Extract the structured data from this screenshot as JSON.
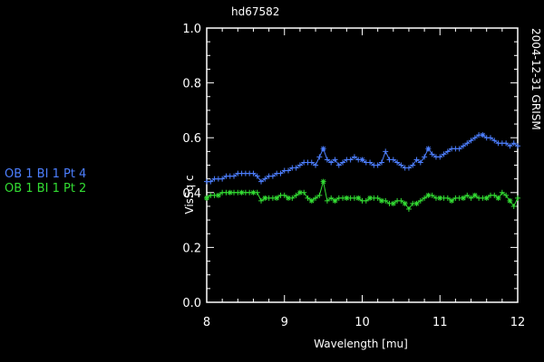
{
  "chart_data": {
    "type": "line",
    "title": "hd67582",
    "right_label": "2004-12-31 GRISM",
    "xlabel": "Wavelength [mu]",
    "ylabel": "VisSq c",
    "xlim": [
      8,
      12
    ],
    "ylim": [
      0,
      1
    ],
    "xticks": [
      8,
      9,
      10,
      11,
      12
    ],
    "yticks": [
      0.0,
      0.2,
      0.4,
      0.6,
      0.8,
      1.0
    ],
    "xtick_labels": [
      "8",
      "9",
      "10",
      "11",
      "12"
    ],
    "ytick_labels": [
      "0.0",
      "0.2",
      "0.4",
      "0.6",
      "0.8",
      "1.0"
    ],
    "colors": {
      "background": "#000000",
      "axes": "#ffffff",
      "text": "#ffffff"
    },
    "series": [
      {
        "name": "OB 1 BI 1 Pt 4",
        "color": "#4d7fff",
        "x": [
          8.0,
          8.05,
          8.1,
          8.15,
          8.2,
          8.25,
          8.3,
          8.35,
          8.4,
          8.45,
          8.5,
          8.55,
          8.6,
          8.65,
          8.7,
          8.75,
          8.8,
          8.85,
          8.9,
          8.95,
          9.0,
          9.05,
          9.1,
          9.15,
          9.2,
          9.25,
          9.3,
          9.35,
          9.4,
          9.45,
          9.5,
          9.55,
          9.6,
          9.65,
          9.7,
          9.75,
          9.8,
          9.85,
          9.9,
          9.95,
          10.0,
          10.05,
          10.1,
          10.15,
          10.2,
          10.25,
          10.3,
          10.35,
          10.4,
          10.45,
          10.5,
          10.55,
          10.6,
          10.65,
          10.7,
          10.75,
          10.8,
          10.85,
          10.9,
          10.95,
          11.0,
          11.05,
          11.1,
          11.15,
          11.2,
          11.25,
          11.3,
          11.35,
          11.4,
          11.45,
          11.5,
          11.55,
          11.6,
          11.65,
          11.7,
          11.75,
          11.8,
          11.85,
          11.9,
          11.95,
          12.0
        ],
        "y": [
          0.44,
          0.44,
          0.45,
          0.45,
          0.45,
          0.46,
          0.46,
          0.46,
          0.47,
          0.47,
          0.47,
          0.47,
          0.47,
          0.46,
          0.44,
          0.45,
          0.46,
          0.46,
          0.47,
          0.47,
          0.48,
          0.48,
          0.49,
          0.49,
          0.5,
          0.51,
          0.51,
          0.51,
          0.5,
          0.53,
          0.56,
          0.52,
          0.51,
          0.52,
          0.5,
          0.51,
          0.52,
          0.52,
          0.53,
          0.52,
          0.52,
          0.51,
          0.51,
          0.5,
          0.5,
          0.51,
          0.55,
          0.52,
          0.52,
          0.51,
          0.5,
          0.49,
          0.49,
          0.5,
          0.52,
          0.51,
          0.53,
          0.56,
          0.54,
          0.53,
          0.53,
          0.54,
          0.55,
          0.56,
          0.56,
          0.56,
          0.57,
          0.58,
          0.59,
          0.6,
          0.61,
          0.61,
          0.6,
          0.6,
          0.59,
          0.58,
          0.58,
          0.58,
          0.57,
          0.58,
          0.57
        ]
      },
      {
        "name": "OB 1 BI 1 Pt 2",
        "color": "#33dd33",
        "x": [
          8.0,
          8.05,
          8.1,
          8.15,
          8.2,
          8.25,
          8.3,
          8.35,
          8.4,
          8.45,
          8.5,
          8.55,
          8.6,
          8.65,
          8.7,
          8.75,
          8.8,
          8.85,
          8.9,
          8.95,
          9.0,
          9.05,
          9.1,
          9.15,
          9.2,
          9.25,
          9.3,
          9.35,
          9.4,
          9.45,
          9.5,
          9.55,
          9.6,
          9.65,
          9.7,
          9.75,
          9.8,
          9.85,
          9.9,
          9.95,
          10.0,
          10.05,
          10.1,
          10.15,
          10.2,
          10.25,
          10.3,
          10.35,
          10.4,
          10.45,
          10.5,
          10.55,
          10.6,
          10.65,
          10.7,
          10.75,
          10.8,
          10.85,
          10.9,
          10.95,
          11.0,
          11.05,
          11.1,
          11.15,
          11.2,
          11.25,
          11.3,
          11.35,
          11.4,
          11.45,
          11.5,
          11.55,
          11.6,
          11.65,
          11.7,
          11.75,
          11.8,
          11.85,
          11.9,
          11.95,
          12.0
        ],
        "y": [
          0.38,
          0.39,
          0.39,
          0.39,
          0.4,
          0.4,
          0.4,
          0.4,
          0.4,
          0.4,
          0.4,
          0.4,
          0.4,
          0.4,
          0.37,
          0.38,
          0.38,
          0.38,
          0.38,
          0.39,
          0.39,
          0.38,
          0.38,
          0.39,
          0.4,
          0.4,
          0.38,
          0.37,
          0.38,
          0.39,
          0.44,
          0.37,
          0.38,
          0.37,
          0.38,
          0.38,
          0.38,
          0.38,
          0.38,
          0.38,
          0.37,
          0.37,
          0.38,
          0.38,
          0.38,
          0.37,
          0.37,
          0.36,
          0.36,
          0.37,
          0.37,
          0.36,
          0.34,
          0.36,
          0.36,
          0.37,
          0.38,
          0.39,
          0.39,
          0.38,
          0.38,
          0.38,
          0.38,
          0.37,
          0.38,
          0.38,
          0.38,
          0.39,
          0.38,
          0.39,
          0.38,
          0.38,
          0.38,
          0.39,
          0.39,
          0.38,
          0.4,
          0.39,
          0.37,
          0.35,
          0.38
        ]
      }
    ]
  }
}
